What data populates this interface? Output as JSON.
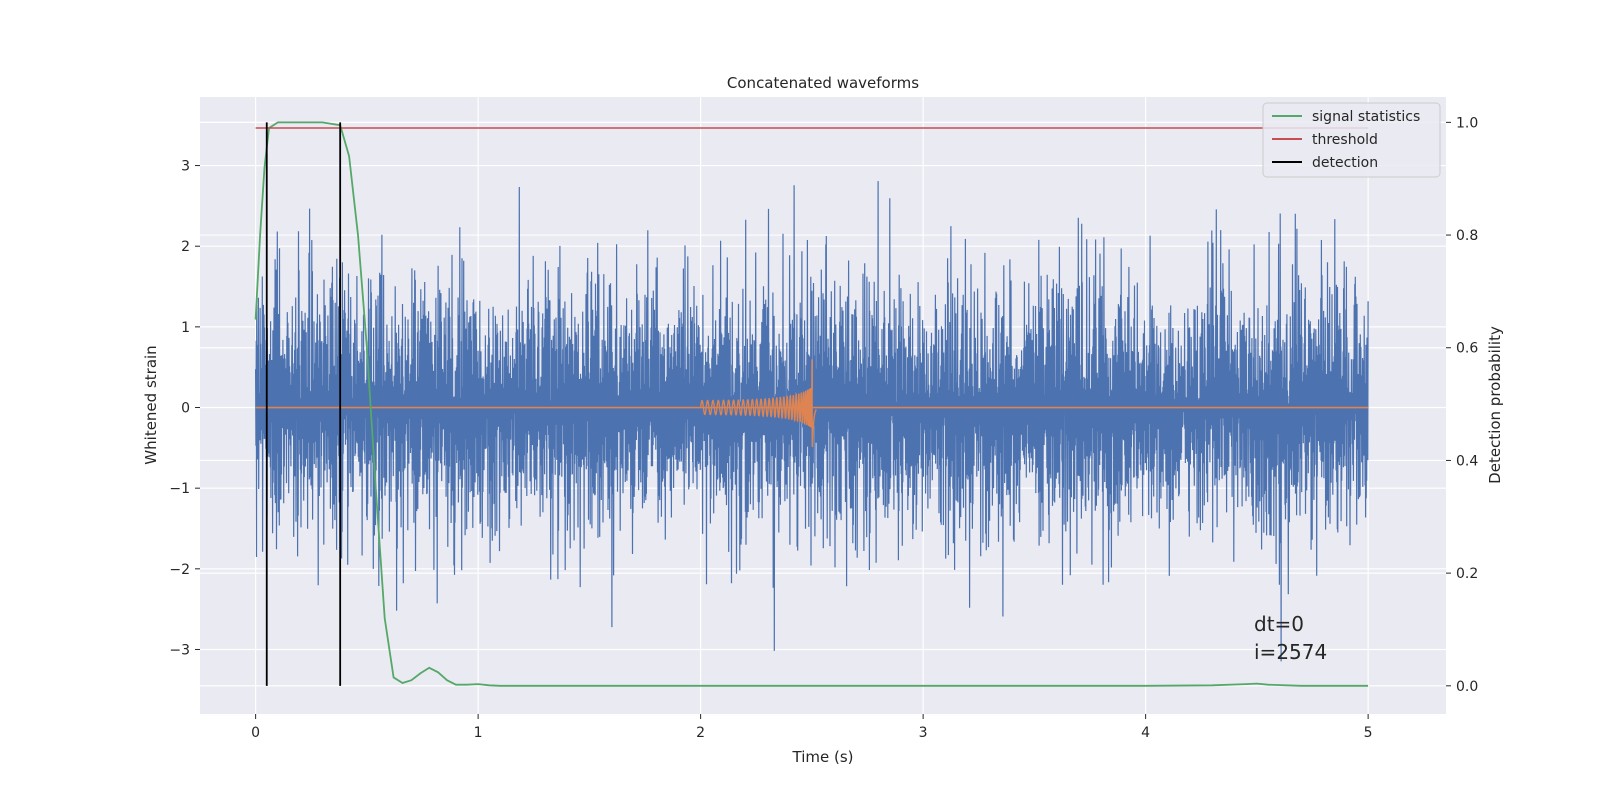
{
  "chart_data": {
    "type": "line",
    "title": "Concatenated waveforms",
    "xlabel": "Time (s)",
    "ylabel": "Whitened strain",
    "ylabel_right": "Detection probability",
    "xlim": [
      -0.25,
      5.35
    ],
    "ylim": [
      -3.8,
      3.85
    ],
    "ylim_right": [
      -0.05,
      1.045
    ],
    "xticks": [
      0,
      1,
      2,
      3,
      4,
      5
    ],
    "yticks": [
      -3,
      -2,
      -1,
      0,
      1,
      2,
      3
    ],
    "yticks_right": [
      0.0,
      0.2,
      0.4,
      0.6,
      0.8,
      1.0
    ],
    "xtick_labels": [
      "0",
      "1",
      "2",
      "3",
      "4",
      "5"
    ],
    "ytick_labels": [
      "−3",
      "−2",
      "−1",
      "0",
      "1",
      "2",
      "3"
    ],
    "ytick_right_labels": [
      "0.0",
      "0.2",
      "0.4",
      "0.6",
      "0.8",
      "1.0"
    ],
    "grid": true,
    "legend_position": "top-right",
    "noise": {
      "x_range": [
        0,
        5
      ],
      "amplitude_typical": 0.7,
      "amplitude_peak": 3.5,
      "color": "#4c72b0"
    },
    "injected_signal": {
      "x_range": [
        2.0,
        2.52
      ],
      "y_max": 0.62,
      "y_min": -0.75,
      "peak_x": 2.5,
      "color": "#dd8452"
    },
    "series": [
      {
        "name": "signal statistics",
        "axis": "right",
        "color": "#55a868",
        "x": [
          0.0,
          0.02,
          0.04,
          0.06,
          0.1,
          0.2,
          0.3,
          0.38,
          0.42,
          0.46,
          0.5,
          0.54,
          0.58,
          0.62,
          0.66,
          0.7,
          0.74,
          0.78,
          0.82,
          0.86,
          0.9,
          0.95,
          1.0,
          1.05,
          1.1,
          1.5,
          2.0,
          2.5,
          3.0,
          3.5,
          4.0,
          4.3,
          4.45,
          4.5,
          4.55,
          4.7,
          5.0
        ],
        "y": [
          0.65,
          0.8,
          0.92,
          0.99,
          1.0,
          1.0,
          1.0,
          0.995,
          0.94,
          0.8,
          0.6,
          0.35,
          0.12,
          0.015,
          0.005,
          0.01,
          0.022,
          0.032,
          0.024,
          0.01,
          0.002,
          0.002,
          0.003,
          0.001,
          0.0,
          0.0,
          0.0,
          0.0,
          0.0,
          0.0,
          0.0,
          0.001,
          0.003,
          0.004,
          0.002,
          0.0,
          0.0
        ]
      },
      {
        "name": "threshold",
        "axis": "right",
        "color": "#c44e52",
        "x": [
          0,
          5
        ],
        "y": [
          0.99,
          0.99
        ]
      },
      {
        "name": "detection",
        "axis": "right",
        "color": "#000000",
        "x": [
          0.05,
          0.38
        ],
        "y_range": [
          0.0,
          1.0
        ]
      }
    ],
    "annotations": [
      "dt=0",
      "i=2574"
    ]
  }
}
